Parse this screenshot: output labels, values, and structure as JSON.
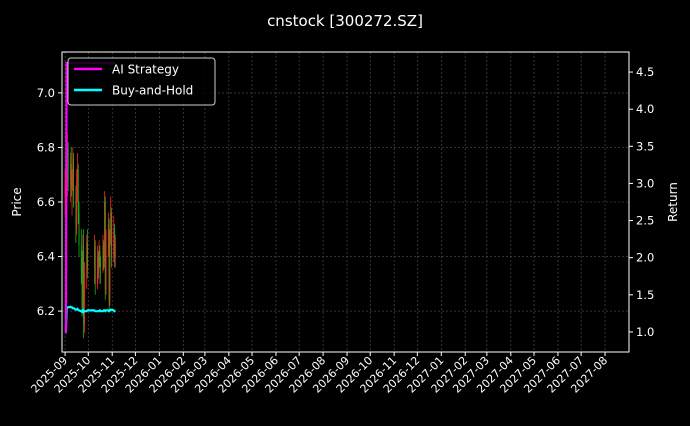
{
  "chart_data": {
    "type": "line",
    "title": "cnstock [300272.SZ]",
    "ylabel_left": "Price",
    "ylabel_right": "Return",
    "xlim": [
      "2025-08-28",
      "2027-09-01"
    ],
    "ylim_left": [
      6.05,
      7.15
    ],
    "ylim_right": [
      0.73,
      4.77
    ],
    "yticks_left": [
      6.2,
      6.4,
      6.6,
      6.8,
      7.0
    ],
    "yticks_right": [
      1.0,
      1.5,
      2.0,
      2.5,
      3.0,
      3.5,
      4.0,
      4.5
    ],
    "xticks": [
      "2025-09",
      "2025-10",
      "2025-11",
      "2025-12",
      "2026-01",
      "2026-02",
      "2026-03",
      "2026-04",
      "2026-05",
      "2026-06",
      "2026-07",
      "2026-08",
      "2026-09",
      "2026-10",
      "2026-11",
      "2026-12",
      "2027-01",
      "2027-02",
      "2027-03",
      "2027-04",
      "2027-05",
      "2027-06",
      "2027-07",
      "2027-08"
    ],
    "grid": true,
    "legend_placement": "top-left",
    "colors": {
      "up": "#ff2020",
      "down": "#20b020",
      "ai": "#ff00ff",
      "bh": "#00ffff",
      "background": "#000000",
      "grid": "#555555"
    },
    "dates": [
      "2025-09-01",
      "2025-09-02",
      "2025-09-03",
      "2025-09-04",
      "2025-09-05",
      "2025-09-08",
      "2025-09-09",
      "2025-09-10",
      "2025-09-11",
      "2025-09-12",
      "2025-09-15",
      "2025-09-16",
      "2025-09-17",
      "2025-09-18",
      "2025-09-19",
      "2025-09-22",
      "2025-09-23",
      "2025-09-24",
      "2025-09-25",
      "2025-09-26",
      "2025-09-29",
      "2025-09-30",
      "2025-10-09",
      "2025-10-10",
      "2025-10-13",
      "2025-10-14",
      "2025-10-15",
      "2025-10-16",
      "2025-10-17",
      "2025-10-20",
      "2025-10-21",
      "2025-10-22",
      "2025-10-23",
      "2025-10-24",
      "2025-10-27",
      "2025-10-28",
      "2025-10-29",
      "2025-10-30",
      "2025-10-31",
      "2025-11-03",
      "2025-11-04",
      "2025-11-05"
    ],
    "ohlc": [
      [
        6.62,
        6.72,
        6.55,
        6.68
      ],
      [
        6.68,
        6.74,
        6.58,
        6.6
      ],
      [
        6.6,
        6.7,
        6.52,
        6.66
      ],
      [
        6.66,
        6.85,
        6.62,
        6.8
      ],
      [
        6.8,
        6.82,
        6.64,
        6.68
      ],
      [
        6.68,
        6.78,
        6.6,
        6.74
      ],
      [
        6.74,
        6.8,
        6.62,
        6.65
      ],
      [
        6.65,
        6.72,
        6.55,
        6.7
      ],
      [
        6.7,
        6.8,
        6.64,
        6.76
      ],
      [
        6.76,
        6.78,
        6.58,
        6.62
      ],
      [
        6.62,
        6.66,
        6.45,
        6.5
      ],
      [
        6.5,
        6.72,
        6.48,
        6.68
      ],
      [
        6.68,
        6.78,
        6.6,
        6.72
      ],
      [
        6.72,
        6.74,
        6.52,
        6.56
      ],
      [
        6.56,
        6.6,
        6.4,
        6.44
      ],
      [
        6.44,
        6.5,
        6.3,
        6.36
      ],
      [
        6.36,
        6.42,
        6.18,
        6.22
      ],
      [
        6.22,
        6.48,
        6.2,
        6.44
      ],
      [
        6.44,
        6.5,
        6.1,
        6.15
      ],
      [
        6.15,
        6.38,
        6.12,
        6.34
      ],
      [
        6.34,
        6.48,
        6.28,
        6.45
      ],
      [
        6.45,
        6.5,
        6.32,
        6.36
      ],
      [
        6.36,
        6.48,
        6.3,
        6.44
      ],
      [
        6.44,
        6.46,
        6.26,
        6.3
      ],
      [
        6.3,
        6.44,
        6.28,
        6.4
      ],
      [
        6.4,
        6.42,
        6.32,
        6.34
      ],
      [
        6.34,
        6.46,
        6.3,
        6.42
      ],
      [
        6.42,
        6.44,
        6.36,
        6.38
      ],
      [
        6.38,
        6.4,
        6.3,
        6.36
      ],
      [
        6.36,
        6.48,
        6.34,
        6.44
      ],
      [
        6.44,
        6.46,
        6.35,
        6.38
      ],
      [
        6.38,
        6.64,
        6.36,
        6.6
      ],
      [
        6.6,
        6.62,
        6.24,
        6.28
      ],
      [
        6.28,
        6.5,
        6.26,
        6.46
      ],
      [
        6.46,
        6.56,
        6.4,
        6.52
      ],
      [
        6.52,
        6.54,
        6.2,
        6.24
      ],
      [
        6.24,
        6.5,
        6.22,
        6.48
      ],
      [
        6.48,
        6.62,
        6.44,
        6.56
      ],
      [
        6.56,
        6.58,
        6.36,
        6.4
      ],
      [
        6.4,
        6.55,
        6.38,
        6.5
      ],
      [
        6.5,
        6.52,
        6.36,
        6.4
      ],
      [
        6.4,
        6.48,
        6.36,
        6.45
      ]
    ],
    "series": [
      {
        "name": "AI Strategy",
        "values": [
          1.0,
          1.0,
          4.62,
          4.62,
          4.62,
          4.62,
          4.62,
          4.62,
          4.62,
          4.62,
          4.62,
          4.62,
          4.62,
          4.62,
          4.62,
          4.62,
          4.62,
          4.62,
          4.62,
          4.62,
          4.62,
          4.62,
          4.62,
          4.62,
          4.62,
          4.62,
          4.62,
          4.62,
          4.62,
          4.62,
          4.62,
          4.62,
          4.62,
          4.62,
          4.62,
          4.62,
          4.62,
          4.62,
          4.62,
          4.62,
          4.62,
          4.62
        ]
      },
      {
        "name": "Buy-and-Hold",
        "values": [
          1.0,
          1.0,
          1.32,
          1.33,
          1.33,
          1.34,
          1.33,
          1.33,
          1.32,
          1.32,
          1.3,
          1.3,
          1.31,
          1.3,
          1.29,
          1.28,
          1.27,
          1.29,
          1.27,
          1.28,
          1.28,
          1.29,
          1.29,
          1.28,
          1.28,
          1.28,
          1.28,
          1.29,
          1.28,
          1.28,
          1.29,
          1.29,
          1.28,
          1.29,
          1.29,
          1.28,
          1.29,
          1.3,
          1.3,
          1.29,
          1.28,
          1.27
        ]
      }
    ]
  }
}
